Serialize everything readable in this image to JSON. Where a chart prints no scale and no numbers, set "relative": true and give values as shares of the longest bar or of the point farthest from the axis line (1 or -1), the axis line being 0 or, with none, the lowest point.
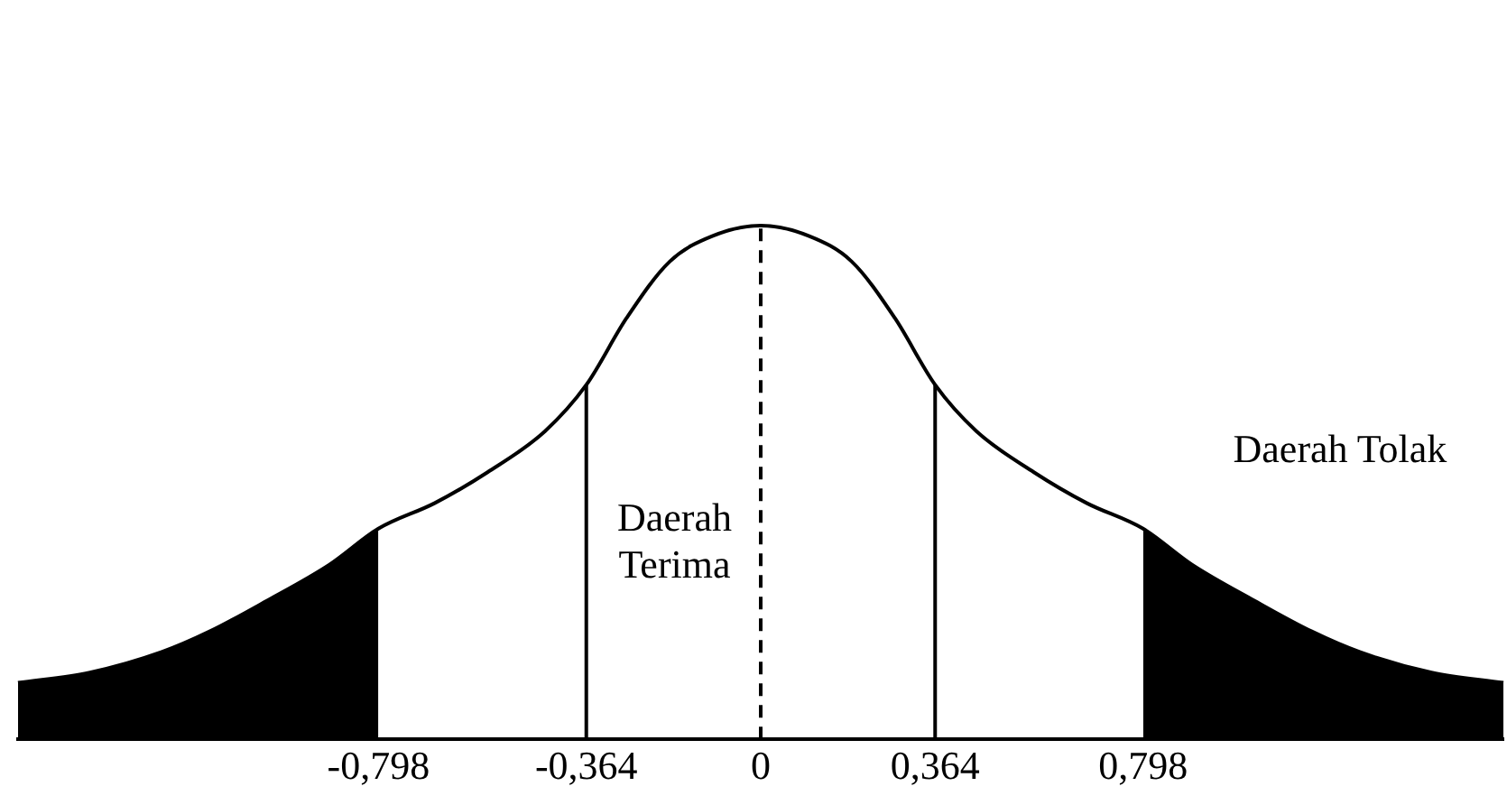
{
  "chart_data": {
    "type": "line",
    "relative": true,
    "x": [
      -1.55,
      -1.4,
      -1.25,
      -1.15,
      -1.03,
      -0.9,
      -0.798,
      -0.68,
      -0.57,
      -0.45,
      -0.364,
      -0.28,
      -0.19,
      -0.1,
      0,
      0.1,
      0.19,
      0.28,
      0.364,
      0.45,
      0.57,
      0.68,
      0.798,
      0.9,
      1.03,
      1.15,
      1.25,
      1.4,
      1.55
    ],
    "series": [
      {
        "color": "#000000",
        "values": [
          0.11,
          0.13,
          0.17,
          0.21,
          0.27,
          0.34,
          0.41,
          0.46,
          0.52,
          0.6,
          0.69,
          0.82,
          0.93,
          0.98,
          1,
          0.98,
          0.93,
          0.82,
          0.69,
          0.6,
          0.52,
          0.46,
          0.41,
          0.34,
          0.27,
          0.21,
          0.17,
          0.13,
          0.11
        ]
      },
      {
        "type": "area",
        "color": "#000000",
        "x": [
          -1.55,
          -1.4,
          -1.25,
          -1.15,
          -1.03,
          -0.9,
          -0.798
        ],
        "values": [
          0.11,
          0.13,
          0.17,
          0.21,
          0.27,
          0.34,
          0.41
        ]
      },
      {
        "type": "area",
        "color": "#000000",
        "x": [
          0.798,
          0.9,
          1.03,
          1.15,
          1.25,
          1.4,
          1.55
        ],
        "values": [
          0.41,
          0.34,
          0.27,
          0.21,
          0.17,
          0.13,
          0.11
        ]
      }
    ],
    "xlim": [
      -1.55,
      1.55
    ],
    "xticks": [
      {
        "value": -0.798,
        "label": "-0,798"
      },
      {
        "value": -0.364,
        "label": "-0,364"
      },
      0,
      {
        "value": 0.364,
        "label": "0,364"
      },
      {
        "value": 0.798,
        "label": "0,798"
      }
    ],
    "tick_labels": "x",
    "grid": false,
    "legend": false,
    "marker": "none",
    "line_style": "solid",
    "ref_lines": [
      {
        "axis": "x",
        "value": -0.364
      },
      {
        "axis": "x",
        "value": 0,
        "line_style": "dashed"
      },
      {
        "axis": "x",
        "value": 0.364
      }
    ],
    "annotations": [
      "Daerah Terima",
      "Daerah Tolak"
    ]
  }
}
